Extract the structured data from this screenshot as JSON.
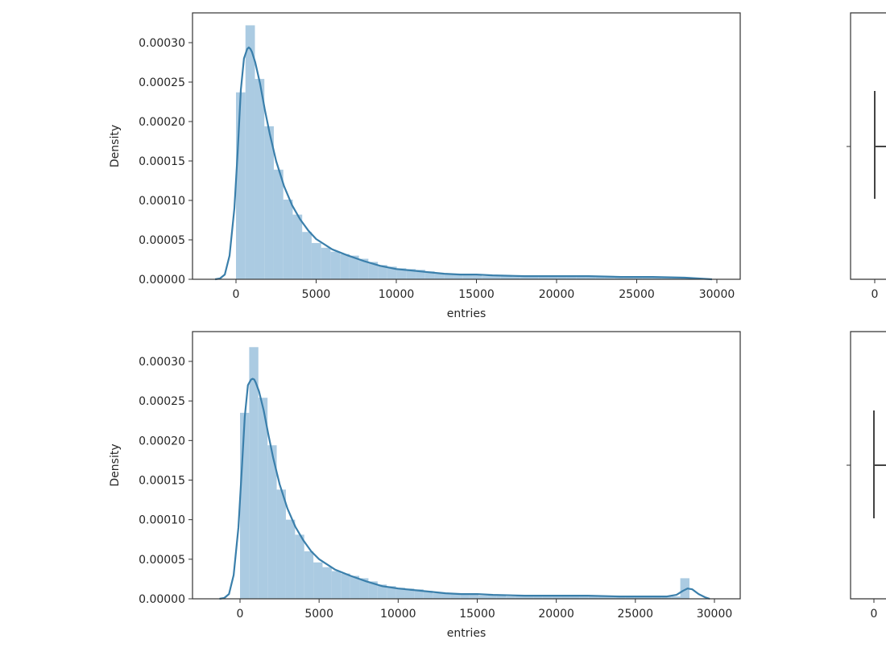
{
  "chart_data": [
    {
      "type": "bar",
      "subtype": "histogram_with_kde",
      "position": "top-left",
      "title": "",
      "xlabel": "entries",
      "ylabel": "Density",
      "xlim": [
        -3000,
        31000
      ],
      "ylim": [
        0,
        0.000335
      ],
      "x_ticks": [
        0,
        5000,
        10000,
        15000,
        20000,
        25000,
        30000
      ],
      "x_tick_labels": [
        "0",
        "5000",
        "10000",
        "15000",
        "20000",
        "25000",
        "30000"
      ],
      "y_ticks": [
        0,
        5e-05,
        0.0001,
        0.00015,
        0.0002,
        0.00025,
        0.0003
      ],
      "y_tick_labels": [
        "0.00000",
        "0.00005",
        "0.00010",
        "0.00015",
        "0.00020",
        "0.00025",
        "0.00030"
      ],
      "grid": false,
      "bar_color": "#a6c8e0",
      "kde_color": "#3a7fab",
      "bins": {
        "bin_width": 590,
        "left_edges": [
          0,
          590,
          1180,
          1770,
          2360,
          2950,
          3540,
          4130,
          4720,
          5310,
          5900,
          6490,
          7080,
          7670,
          8260,
          8850,
          9440,
          10030,
          10620,
          11210,
          11800,
          12390,
          12980,
          13570,
          14160,
          14750,
          15340,
          15930,
          16520,
          17110,
          17700,
          18290,
          18880,
          19470,
          20060,
          20650,
          21240,
          21830,
          22420,
          23010,
          23600,
          24190,
          24780,
          25370,
          25960,
          26550,
          27140,
          27730,
          28320,
          28910
        ],
        "values": [
          0.000237,
          0.000322,
          0.000254,
          0.000194,
          0.000139,
          0.000101,
          8.2e-05,
          6e-05,
          4.6e-05,
          4e-05,
          3.5e-05,
          3.2e-05,
          3e-05,
          2.6e-05,
          2.2e-05,
          1.8e-05,
          1.6e-05,
          1.4e-05,
          1.3e-05,
          1.2e-05,
          1e-05,
          7e-06,
          7e-06,
          6e-06,
          6e-06,
          5e-06,
          4e-06,
          4e-06,
          4e-06,
          4e-06,
          3e-06,
          3e-06,
          3e-06,
          3e-06,
          3e-06,
          3e-06,
          3e-06,
          3e-06,
          3e-06,
          3e-06,
          3e-06,
          3e-06,
          3e-06,
          3e-06,
          3e-06,
          3e-06,
          3e-06,
          2e-06,
          2e-06,
          1e-06
        ]
      },
      "kde": {
        "x": [
          -1300,
          -1000,
          -700,
          -400,
          -100,
          100,
          300,
          500,
          700,
          800,
          900,
          1000,
          1200,
          1500,
          1800,
          2100,
          2500,
          3000,
          3500,
          4000,
          4500,
          5000,
          6000,
          7000,
          8000,
          9000,
          10000,
          11000,
          12000,
          13000,
          14000,
          15000,
          16000,
          18000,
          20000,
          22000,
          24000,
          26000,
          28000,
          29700
        ],
        "y": [
          0,
          1e-06,
          6e-06,
          3e-05,
          9e-05,
          0.00016,
          0.00024,
          0.00028,
          0.000292,
          0.000294,
          0.000292,
          0.000288,
          0.000275,
          0.000248,
          0.000215,
          0.000185,
          0.00015,
          0.000118,
          9.4e-05,
          7.6e-05,
          6.2e-05,
          5.1e-05,
          3.8e-05,
          3e-05,
          2.3e-05,
          1.7e-05,
          1.3e-05,
          1.1e-05,
          9e-06,
          7e-06,
          6e-06,
          6e-06,
          5e-06,
          4e-06,
          4e-06,
          4e-06,
          3e-06,
          3e-06,
          2e-06,
          0
        ]
      }
    },
    {
      "type": "boxplot",
      "position": "top-right",
      "partially_visible": true,
      "x_ticks": [
        0
      ],
      "x_tick_labels": [
        "0"
      ],
      "whisker_low_visible": 0
    },
    {
      "type": "bar",
      "subtype": "histogram_with_kde",
      "position": "bottom-left",
      "title": "",
      "xlabel": "entries",
      "ylabel": "Density",
      "xlim": [
        -3000,
        31000
      ],
      "ylim": [
        0,
        0.000335
      ],
      "x_ticks": [
        0,
        5000,
        10000,
        15000,
        20000,
        25000,
        30000
      ],
      "x_tick_labels": [
        "0",
        "5000",
        "10000",
        "15000",
        "20000",
        "25000",
        "30000"
      ],
      "y_ticks": [
        0,
        5e-05,
        0.0001,
        0.00015,
        0.0002,
        0.00025,
        0.0003
      ],
      "y_tick_labels": [
        "0.00000",
        "0.00005",
        "0.00010",
        "0.00015",
        "0.00020",
        "0.00025",
        "0.00030"
      ],
      "grid": false,
      "bar_color": "#a6c8e0",
      "kde_color": "#3a7fab",
      "bins": {
        "bin_width": 580,
        "left_edges": [
          0,
          580,
          1160,
          1740,
          2320,
          2900,
          3480,
          4060,
          4640,
          5220,
          5800,
          6380,
          6960,
          7540,
          8120,
          8700,
          9280,
          9860,
          10440,
          11020,
          11600,
          12180,
          12760,
          13340,
          13920,
          14500,
          15080,
          15660,
          16240,
          16820,
          17400,
          17980,
          18560,
          19140,
          19720,
          20300,
          20880,
          21460,
          22040,
          22620,
          23200,
          23780,
          24360,
          24940,
          25520,
          26100,
          26680,
          27260,
          27840,
          28420
        ],
        "values": [
          0.000235,
          0.000318,
          0.000254,
          0.000194,
          0.000138,
          0.0001,
          8.1e-05,
          6e-05,
          4.6e-05,
          4e-05,
          3.5e-05,
          3.2e-05,
          2.9e-05,
          2.6e-05,
          2.2e-05,
          1.8e-05,
          1.6e-05,
          1.4e-05,
          1.3e-05,
          1.2e-05,
          1e-05,
          7e-06,
          7e-06,
          6e-06,
          5e-06,
          5e-06,
          4e-06,
          4e-06,
          4e-06,
          3e-06,
          3e-06,
          3e-06,
          3e-06,
          3e-06,
          3e-06,
          3e-06,
          3e-06,
          3e-06,
          3e-06,
          3e-06,
          3e-06,
          3e-06,
          3e-06,
          3e-06,
          3e-06,
          3e-06,
          3e-06,
          3e-06,
          2.6e-05,
          0
        ]
      },
      "kde": {
        "x": [
          -1300,
          -1000,
          -700,
          -400,
          -100,
          100,
          300,
          500,
          700,
          800,
          900,
          1000,
          1200,
          1500,
          1800,
          2100,
          2500,
          3000,
          3500,
          4000,
          4500,
          5000,
          6000,
          7000,
          8000,
          9000,
          10000,
          11000,
          12000,
          13000,
          14000,
          15000,
          16000,
          18000,
          20000,
          22000,
          24000,
          26000,
          27000,
          27600,
          28000,
          28300,
          28600,
          29000,
          29400,
          29700
        ],
        "y": [
          0,
          1e-06,
          6e-06,
          3e-05,
          9e-05,
          0.00016,
          0.00023,
          0.00027,
          0.000277,
          0.000278,
          0.000277,
          0.000273,
          0.000262,
          0.000238,
          0.000207,
          0.000178,
          0.000145,
          0.000114,
          9.1e-05,
          7.4e-05,
          6e-05,
          5e-05,
          3.7e-05,
          2.9e-05,
          2.2e-05,
          1.6e-05,
          1.3e-05,
          1.1e-05,
          9e-06,
          7e-06,
          6e-06,
          6e-06,
          5e-06,
          4e-06,
          4e-06,
          4e-06,
          3e-06,
          3e-06,
          3e-06,
          5e-06,
          1e-05,
          1.3e-05,
          1.2e-05,
          6e-06,
          2e-06,
          0
        ]
      }
    },
    {
      "type": "boxplot",
      "position": "bottom-right",
      "partially_visible": true,
      "x_ticks": [
        0
      ],
      "x_tick_labels": [
        "0"
      ],
      "whisker_low_visible": 0
    }
  ]
}
